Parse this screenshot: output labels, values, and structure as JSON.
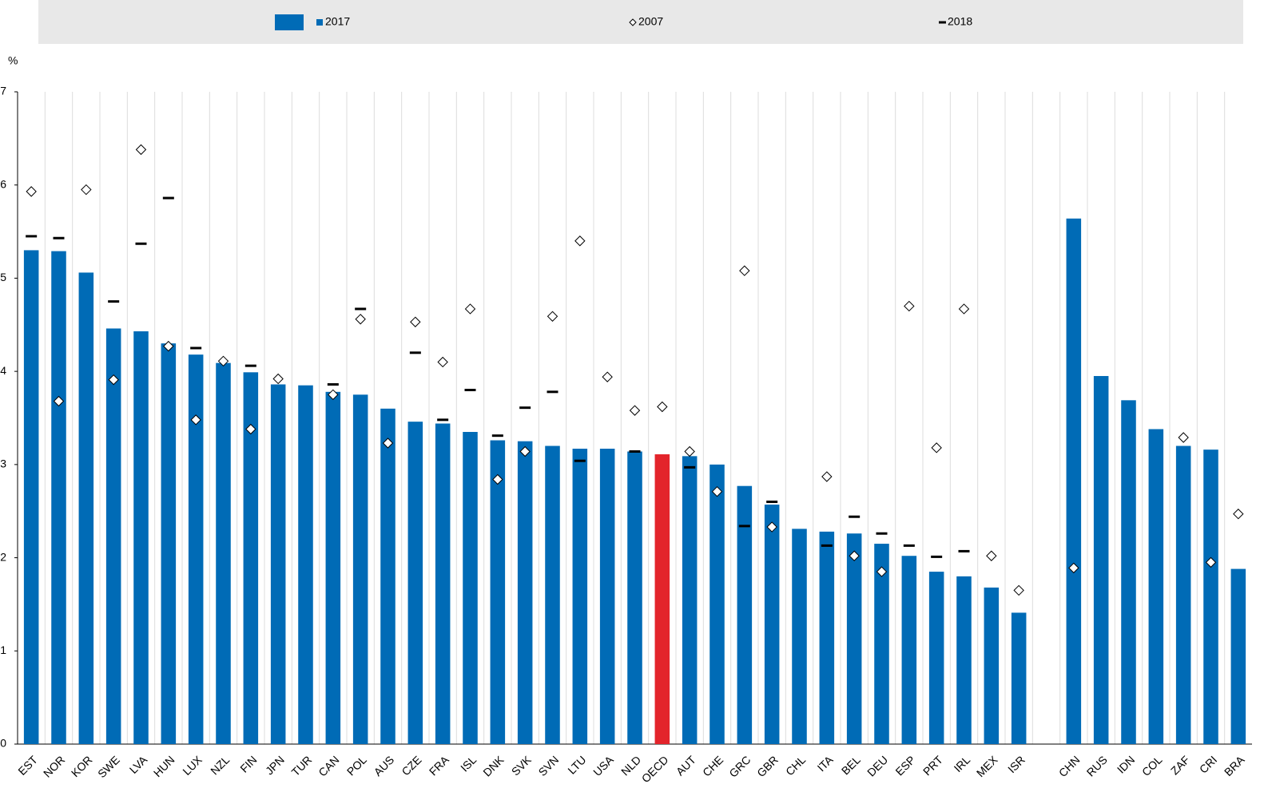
{
  "chart_data": {
    "type": "bar",
    "ylabel": "%",
    "categories": [
      "EST",
      "NOR",
      "KOR",
      "SWE",
      "LVA",
      "HUN",
      "LUX",
      "NZL",
      "FIN",
      "JPN",
      "TUR",
      "CAN",
      "POL",
      "AUS",
      "CZE",
      "FRA",
      "ISL",
      "DNK",
      "SVK",
      "SVN",
      "LTU",
      "USA",
      "NLD",
      "OECD",
      "AUT",
      "CHE",
      "GRC",
      "GBR",
      "CHL",
      "ITA",
      "BEL",
      "DEU",
      "ESP",
      "PRT",
      "IRL",
      "MEX",
      "ISR",
      null,
      "CHN",
      "RUS",
      "IDN",
      "COL",
      "ZAF",
      "CRI",
      "BRA"
    ],
    "series": [
      {
        "name": "2017",
        "type": "bar",
        "color": "#006bb6",
        "colors": [
          "#006bb6",
          "#006bb6",
          "#006bb6",
          "#006bb6",
          "#006bb6",
          "#006bb6",
          "#006bb6",
          "#006bb6",
          "#006bb6",
          "#006bb6",
          "#006bb6",
          "#006bb6",
          "#006bb6",
          "#006bb6",
          "#006bb6",
          "#006bb6",
          "#006bb6",
          "#006bb6",
          "#006bb6",
          "#006bb6",
          "#006bb6",
          "#006bb6",
          "#006bb6",
          "#e3242b",
          "#006bb6",
          "#006bb6",
          "#006bb6",
          "#006bb6",
          "#006bb6",
          "#006bb6",
          "#006bb6",
          "#006bb6",
          "#006bb6",
          "#006bb6",
          "#006bb6",
          "#006bb6",
          "#006bb6",
          null,
          "#006bb6",
          "#006bb6",
          "#006bb6",
          "#006bb6",
          "#006bb6",
          "#006bb6",
          "#006bb6"
        ],
        "values": [
          5.3,
          5.29,
          5.06,
          4.46,
          4.43,
          4.3,
          4.18,
          4.09,
          3.99,
          3.86,
          3.85,
          3.78,
          3.75,
          3.6,
          3.46,
          3.44,
          3.35,
          3.26,
          3.25,
          3.2,
          3.17,
          3.17,
          3.14,
          3.11,
          3.09,
          3.0,
          2.77,
          2.57,
          2.31,
          2.28,
          2.26,
          2.15,
          2.02,
          1.85,
          1.8,
          1.68,
          1.41,
          null,
          5.64,
          3.95,
          3.69,
          3.38,
          3.2,
          3.16,
          1.88
        ]
      },
      {
        "name": "2007",
        "type": "diamond",
        "color": "#ffffff",
        "values": [
          5.93,
          3.68,
          5.95,
          3.91,
          6.38,
          4.27,
          3.48,
          4.11,
          3.38,
          3.92,
          null,
          3.75,
          4.56,
          3.23,
          4.53,
          4.1,
          4.67,
          2.84,
          3.14,
          4.59,
          5.4,
          3.94,
          3.58,
          3.62,
          3.14,
          2.71,
          5.08,
          2.33,
          null,
          2.87,
          2.02,
          1.85,
          4.7,
          3.18,
          4.67,
          2.02,
          1.65,
          null,
          1.89,
          null,
          null,
          null,
          3.29,
          1.95,
          2.47
        ]
      },
      {
        "name": "2018",
        "type": "dash",
        "color": "#000000",
        "values": [
          5.45,
          5.43,
          null,
          4.75,
          5.37,
          5.86,
          4.25,
          null,
          4.06,
          null,
          null,
          3.86,
          4.67,
          null,
          4.2,
          3.48,
          3.8,
          3.31,
          3.61,
          3.78,
          3.04,
          null,
          3.14,
          null,
          2.97,
          null,
          2.34,
          2.6,
          null,
          2.13,
          2.44,
          2.26,
          2.13,
          2.01,
          2.07,
          null,
          null,
          null,
          null,
          null,
          null,
          null,
          null,
          null,
          null
        ]
      }
    ],
    "ylim": [
      0,
      7
    ],
    "yticks": [
      0,
      1,
      2,
      3,
      4,
      5,
      6,
      7
    ]
  }
}
